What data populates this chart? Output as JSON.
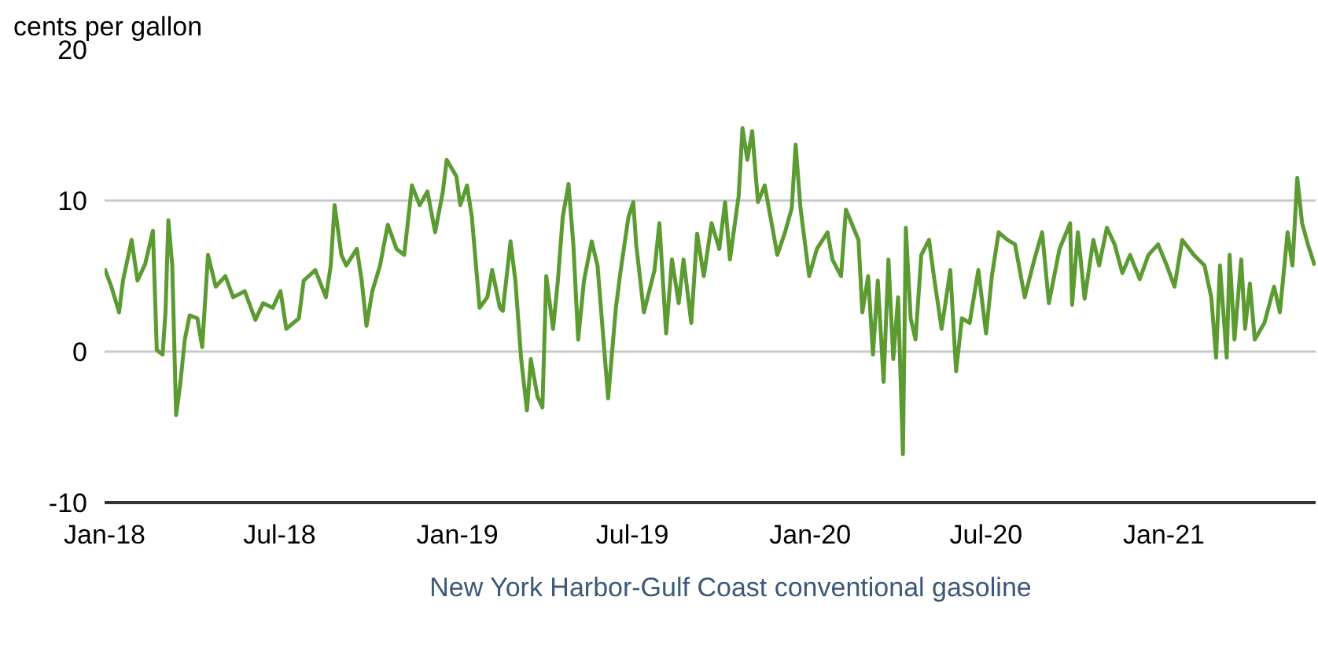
{
  "chart_data": {
    "type": "line",
    "ylabel": "cents per gallon",
    "x": [
      "2018-01-01",
      "2018-01-08",
      "2018-01-16",
      "2018-01-20",
      "2018-01-29",
      "2018-02-04",
      "2018-02-12",
      "2018-02-20",
      "2018-02-24",
      "2018-03-02",
      "2018-03-05",
      "2018-03-08",
      "2018-03-12",
      "2018-03-16",
      "2018-03-20",
      "2018-03-25",
      "2018-03-30",
      "2018-04-07",
      "2018-04-12",
      "2018-04-18",
      "2018-04-26",
      "2018-05-06",
      "2018-05-14",
      "2018-05-26",
      "2018-06-06",
      "2018-06-14",
      "2018-06-24",
      "2018-07-02",
      "2018-07-08",
      "2018-07-21",
      "2018-07-26",
      "2018-08-07",
      "2018-08-18",
      "2018-08-23",
      "2018-08-27",
      "2018-09-03",
      "2018-09-08",
      "2018-09-19",
      "2018-09-24",
      "2018-09-29",
      "2018-10-05",
      "2018-10-13",
      "2018-10-21",
      "2018-10-30",
      "2018-11-07",
      "2018-11-15",
      "2018-11-23",
      "2018-12-01",
      "2018-12-09",
      "2018-12-17",
      "2018-12-21",
      "2018-12-31",
      "2019-01-04",
      "2019-01-11",
      "2019-01-16",
      "2019-01-24",
      "2019-02-01",
      "2019-02-06",
      "2019-02-14",
      "2019-02-17",
      "2019-02-25",
      "2019-03-02",
      "2019-03-08",
      "2019-03-14",
      "2019-03-18",
      "2019-03-25",
      "2019-03-30",
      "2019-04-03",
      "2019-04-10",
      "2019-04-15",
      "2019-04-20",
      "2019-04-26",
      "2019-05-01",
      "2019-05-06",
      "2019-05-12",
      "2019-05-20",
      "2019-05-26",
      "2019-06-06",
      "2019-06-14",
      "2019-06-19",
      "2019-06-27",
      "2019-07-02",
      "2019-07-05",
      "2019-07-13",
      "2019-07-24",
      "2019-07-29",
      "2019-08-05",
      "2019-08-11",
      "2019-08-18",
      "2019-08-23",
      "2019-08-31",
      "2019-09-06",
      "2019-09-13",
      "2019-09-21",
      "2019-09-29",
      "2019-10-05",
      "2019-10-10",
      "2019-10-19",
      "2019-10-23",
      "2019-10-28",
      "2019-11-02",
      "2019-11-08",
      "2019-11-15",
      "2019-11-23",
      "2019-11-28",
      "2019-12-06",
      "2019-12-13",
      "2019-12-17",
      "2019-12-22",
      "2019-12-31",
      "2020-01-08",
      "2020-01-19",
      "2020-01-24",
      "2020-02-02",
      "2020-02-07",
      "2020-02-20",
      "2020-02-24",
      "2020-03-01",
      "2020-03-06",
      "2020-03-11",
      "2020-03-17",
      "2020-03-22",
      "2020-03-27",
      "2020-04-01",
      "2020-04-06",
      "2020-04-09",
      "2020-04-14",
      "2020-04-19",
      "2020-04-25",
      "2020-05-03",
      "2020-05-08",
      "2020-05-16",
      "2020-05-25",
      "2020-05-31",
      "2020-06-06",
      "2020-06-14",
      "2020-06-23",
      "2020-07-01",
      "2020-07-07",
      "2020-07-14",
      "2020-07-23",
      "2020-07-31",
      "2020-08-10",
      "2020-08-20",
      "2020-08-28",
      "2020-09-04",
      "2020-09-15",
      "2020-09-26",
      "2020-09-28",
      "2020-10-04",
      "2020-10-11",
      "2020-10-20",
      "2020-10-26",
      "2020-11-03",
      "2020-11-11",
      "2020-11-19",
      "2020-11-27",
      "2020-12-07",
      "2020-12-16",
      "2020-12-26",
      "2021-01-04",
      "2021-01-12",
      "2021-01-20",
      "2021-02-01",
      "2021-02-12",
      "2021-02-19",
      "2021-02-24",
      "2021-02-28",
      "2021-03-07",
      "2021-03-10",
      "2021-03-15",
      "2021-03-22",
      "2021-03-26",
      "2021-03-31",
      "2021-04-05",
      "2021-04-15",
      "2021-04-25",
      "2021-05-01",
      "2021-05-09",
      "2021-05-14",
      "2021-05-19",
      "2021-05-24",
      "2021-05-30",
      "2021-06-06"
    ],
    "series": [
      {
        "name": "New York Harbor-Gulf Coast conventional gasoline",
        "color": "#5b9b32",
        "values": [
          5.5,
          4.3,
          2.6,
          4.7,
          7.4,
          4.7,
          5.8,
          8.0,
          0.1,
          -0.2,
          2.6,
          8.7,
          5.7,
          -4.2,
          -2.3,
          0.8,
          2.4,
          2.2,
          0.3,
          6.4,
          4.3,
          5.0,
          3.6,
          4.0,
          2.1,
          3.2,
          2.9,
          4.0,
          1.5,
          2.2,
          4.7,
          5.4,
          3.6,
          5.7,
          9.7,
          6.4,
          5.7,
          6.8,
          4.7,
          1.7,
          4.0,
          5.7,
          8.4,
          6.8,
          6.4,
          11.0,
          9.7,
          10.6,
          7.9,
          10.6,
          12.7,
          11.6,
          9.7,
          11.0,
          8.9,
          2.9,
          3.6,
          5.4,
          2.9,
          2.7,
          7.3,
          4.7,
          -0.5,
          -3.9,
          -0.5,
          -3.0,
          -3.7,
          5.0,
          1.5,
          4.7,
          8.9,
          11.1,
          7.1,
          0.8,
          4.7,
          7.3,
          5.7,
          -3.1,
          2.9,
          5.4,
          8.9,
          9.9,
          7.1,
          2.6,
          5.4,
          8.5,
          1.2,
          6.1,
          3.2,
          6.1,
          1.9,
          7.8,
          5.0,
          8.5,
          6.8,
          9.9,
          6.1,
          10.3,
          14.8,
          12.7,
          14.6,
          9.9,
          11.0,
          8.2,
          6.4,
          7.9,
          9.5,
          13.7,
          9.5,
          5.0,
          6.8,
          7.9,
          6.1,
          5.0,
          9.4,
          7.4,
          2.6,
          5.0,
          -0.2,
          4.7,
          -2.0,
          6.1,
          -0.5,
          3.6,
          -6.8,
          8.2,
          2.2,
          0.8,
          6.4,
          7.4,
          5.0,
          1.5,
          5.4,
          -1.3,
          2.2,
          1.9,
          5.4,
          1.2,
          5.0,
          7.9,
          7.4,
          7.1,
          3.6,
          6.1,
          7.9,
          3.2,
          6.8,
          8.5,
          3.1,
          7.9,
          3.5,
          7.4,
          5.7,
          8.2,
          7.1,
          5.2,
          6.4,
          4.8,
          6.4,
          7.1,
          5.7,
          4.3,
          7.4,
          6.4,
          5.7,
          3.6,
          -0.4,
          5.7,
          -0.4,
          6.4,
          0.8,
          6.1,
          1.5,
          4.5,
          0.8,
          1.9,
          4.3,
          2.6,
          7.9,
          5.7,
          11.5,
          8.5,
          7.1,
          5.7
        ]
      }
    ],
    "xlim": [
      "2018-01-01",
      "2021-06-07"
    ],
    "xticks": [
      {
        "value": "2018-01-01",
        "label": "Jan-18"
      },
      {
        "value": "2018-07-01",
        "label": "Jul-18"
      },
      {
        "value": "2019-01-01",
        "label": "Jan-19"
      },
      {
        "value": "2019-07-01",
        "label": "Jul-19"
      },
      {
        "value": "2020-01-01",
        "label": "Jan-20"
      },
      {
        "value": "2020-07-01",
        "label": "Jul-20"
      },
      {
        "value": "2021-01-01",
        "label": "Jan-21"
      }
    ],
    "ylim": [
      -10,
      20
    ],
    "yticks": [
      -10,
      0,
      10,
      20
    ],
    "grid": "y",
    "legend": "bottom",
    "line_style": "solid"
  }
}
